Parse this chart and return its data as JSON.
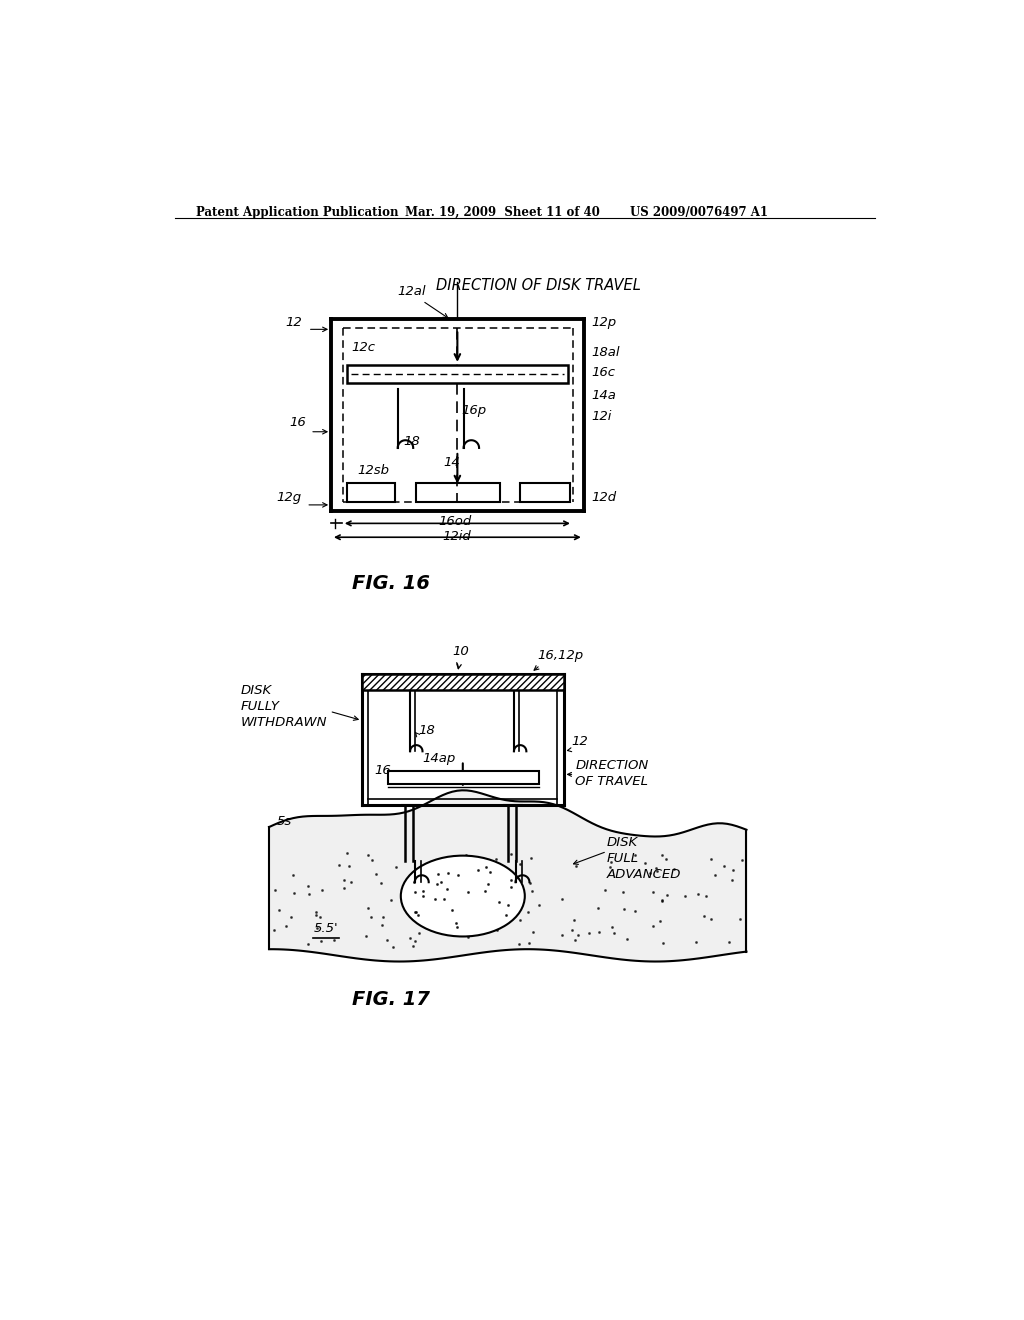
{
  "bg_color": "#ffffff",
  "header_left": "Patent Application Publication",
  "header_mid": "Mar. 19, 2009  Sheet 11 of 40",
  "header_right": "US 2009/0076497 A1",
  "fig16_label": "FIG. 16",
  "fig17_label": "FIG. 17",
  "direction_disk_travel": "DIRECTION OF DISK TRAVEL",
  "direction_of_travel": "DIRECTION\nOF TRAVEL",
  "disk_fully_withdrawn": "DISK\nFULLY\nWITHDRAWN",
  "disk_full_advanced": "DISK\nFULL\nADVANCED"
}
